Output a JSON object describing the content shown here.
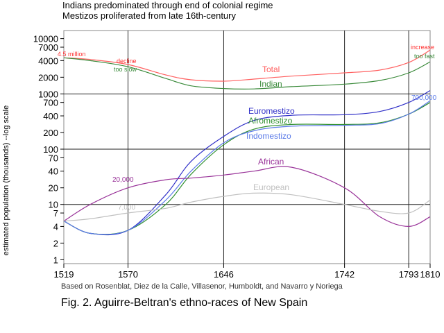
{
  "chart_data": {
    "type": "line",
    "title_lines": [
      "Indians predominated through end of colonial regime",
      "Mestizos  proliferated from late 16th-century"
    ],
    "ylabel": "estimated population (thousands) --log scale",
    "x_ticks": [
      1519,
      1570,
      1646,
      1742,
      1793,
      1810
    ],
    "xlim": [
      1519,
      1810
    ],
    "y_ticks": [
      10000,
      7000,
      4000,
      2000,
      1000,
      700,
      400,
      200,
      100,
      70,
      40,
      20,
      10,
      7,
      4,
      2,
      1
    ],
    "y_tick_labels": [
      "10000",
      "7000",
      "4000",
      "2000",
      "1000",
      "700",
      "400",
      "200",
      "100",
      "70",
      "40",
      "20",
      "10",
      "7",
      "4",
      "2",
      "1"
    ],
    "ylim": [
      0.85,
      14000
    ],
    "y_scale": "log",
    "grid_x": [
      1570,
      1646,
      1742,
      1793
    ],
    "grid_y": [
      10,
      100,
      1000
    ],
    "source": "Based on Rosenblat, Diez de la Calle, Villasenor, Humboldt, and Navarro y Noriega",
    "caption": "Fig. 2. Aguirre-Beltran's ethno-races of New Spain",
    "colors": {
      "total": "#ff6060",
      "indian": "#3a8a3a",
      "euromestizo": "#3030c8",
      "afromestizo": "#2f8f2f",
      "indomestizo": "#5a7ae8",
      "african": "#993399",
      "european": "#c0c0c0",
      "grid": "#222222",
      "grid_light": "#aaaaaa",
      "axis_text": "#000000",
      "label_red": "#ff3030"
    },
    "series": [
      {
        "name": "Total",
        "color_key": "total",
        "x": [
          1519,
          1540,
          1570,
          1600,
          1620,
          1646,
          1670,
          1700,
          1742,
          1770,
          1793,
          1810
        ],
        "values": [
          4500,
          4200,
          3400,
          2200,
          1800,
          1700,
          1850,
          2100,
          2400,
          2700,
          3700,
          6200
        ]
      },
      {
        "name": "Indian",
        "color_key": "indian",
        "x": [
          1519,
          1540,
          1570,
          1600,
          1620,
          1646,
          1670,
          1700,
          1742,
          1770,
          1793,
          1810
        ],
        "values": [
          4500,
          4000,
          3100,
          1900,
          1400,
          1250,
          1230,
          1350,
          1500,
          1750,
          2400,
          3800
        ]
      },
      {
        "name": "Euromestizo",
        "color_key": "euromestizo",
        "x": [
          1519,
          1540,
          1570,
          1600,
          1620,
          1646,
          1670,
          1700,
          1742,
          1770,
          1793,
          1810
        ],
        "values": [
          5,
          3,
          3.4,
          15,
          60,
          170,
          330,
          410,
          420,
          480,
          700,
          1150
        ]
      },
      {
        "name": "Afromestizo",
        "color_key": "afromestizo",
        "x": [
          1519,
          1540,
          1570,
          1600,
          1620,
          1646,
          1670,
          1700,
          1742,
          1770,
          1793,
          1810
        ],
        "values": [
          5,
          3,
          3.4,
          10,
          35,
          120,
          230,
          280,
          280,
          300,
          430,
          700
        ]
      },
      {
        "name": "Indomestizo",
        "color_key": "indomestizo",
        "x": [
          1519,
          1540,
          1570,
          1600,
          1620,
          1646,
          1670,
          1700,
          1742,
          1770,
          1793,
          1810
        ],
        "values": [
          5,
          3,
          3.4,
          12,
          40,
          130,
          215,
          260,
          270,
          290,
          430,
          750
        ]
      },
      {
        "name": "African",
        "color_key": "african",
        "x": [
          1519,
          1540,
          1570,
          1600,
          1620,
          1646,
          1670,
          1700,
          1742,
          1770,
          1793,
          1810
        ],
        "values": [
          5,
          10,
          20,
          28,
          30,
          34,
          40,
          47,
          20,
          6,
          4,
          6
        ]
      },
      {
        "name": "European",
        "color_key": "european",
        "x": [
          1519,
          1540,
          1570,
          1600,
          1620,
          1646,
          1670,
          1700,
          1742,
          1770,
          1793,
          1810
        ],
        "values": [
          5,
          5.5,
          7,
          8.5,
          11,
          14,
          16,
          15,
          10,
          7.5,
          7,
          12
        ]
      }
    ],
    "annotations": [
      {
        "id": "total-start",
        "text": "4.5 million",
        "color_key": "label_red"
      },
      {
        "id": "decline",
        "text": "decline",
        "color_key": "label_red"
      },
      {
        "id": "too-slow",
        "text": "too slow",
        "color_key": "indian"
      },
      {
        "id": "increase",
        "text": "increase",
        "color_key": "label_red"
      },
      {
        "id": "too-fast",
        "text": "too fast",
        "color_key": "indian"
      },
      {
        "id": "total",
        "text": "Total",
        "color_key": "total"
      },
      {
        "id": "indian",
        "text": "Indian",
        "color_key": "indian"
      },
      {
        "id": "euromestizo",
        "text": "Euromestizo",
        "color_key": "euromestizo"
      },
      {
        "id": "afromestizo",
        "text": "Afromestizo",
        "color_key": "afromestizo"
      },
      {
        "id": "indomestizo",
        "text": "Indomestizo",
        "color_key": "indomestizo"
      },
      {
        "id": "n700000",
        "text": "700,000",
        "color_key": "indomestizo"
      },
      {
        "id": "african",
        "text": "African",
        "color_key": "african"
      },
      {
        "id": "n20000",
        "text": "20,000",
        "color_key": "african"
      },
      {
        "id": "european",
        "text": "European",
        "color_key": "european"
      },
      {
        "id": "n7000",
        "text": "7,000",
        "color_key": "european"
      }
    ]
  }
}
